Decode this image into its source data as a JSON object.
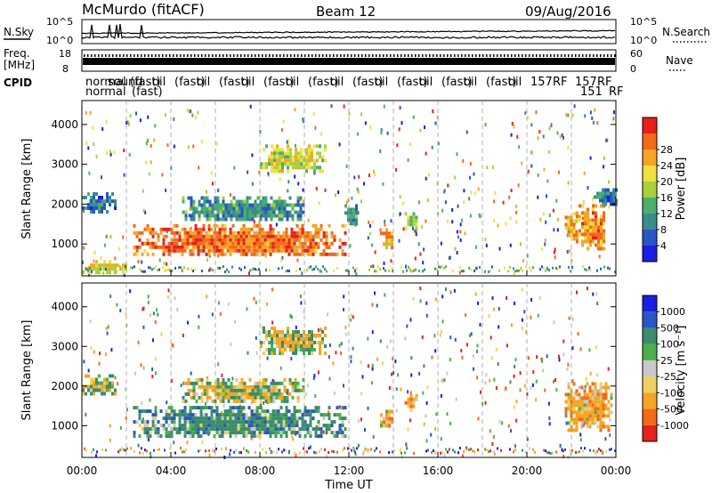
{
  "header": {
    "radar": "McMurdo (fitACF)",
    "beam": "Beam 12",
    "date": "09/Aug/2016"
  },
  "status_panels": {
    "nsky_label": "N.Sky",
    "nsearch_label": "N.Search",
    "nsky_ticks": [
      "10^5",
      "10^0"
    ],
    "nsearch_ticks": [
      "10^5",
      "10^0"
    ],
    "freq_label": "Freq.",
    "freq_unit": "[MHz]",
    "freq_ticks": [
      "18",
      "8"
    ],
    "nave_label": "Nave",
    "nave_ticks": [
      "60",
      "0"
    ],
    "cpid_label": "CPID",
    "cpid_row1": [
      "normal",
      "sound",
      "(fast)",
      "oil",
      "(fast)",
      "oil",
      "(fast)",
      "oil",
      "(fast)",
      "oil",
      "(fast)",
      "oil",
      "(fast)",
      "oil",
      "(fast)",
      "oil",
      "(fast)",
      "oil",
      "(fast)",
      "oil",
      "157",
      "RF",
      "157",
      "RF"
    ],
    "cpid_row2": [
      "normal",
      "(fast)",
      "151",
      "RF"
    ]
  },
  "time_axis": {
    "label": "Time UT",
    "ticks": [
      "00:00",
      "04:00",
      "08:00",
      "12:00",
      "16:00",
      "20:00",
      "00:00"
    ]
  },
  "power_panel": {
    "ylabel": "Slant Range [km]",
    "yticks": [
      "1000",
      "2000",
      "3000",
      "4000"
    ],
    "colorbar_label": "Power [dB]",
    "colorbar_ticks": [
      "4",
      "8",
      "12",
      "16",
      "20",
      "24",
      "28"
    ],
    "colors": [
      "#1b1fe0",
      "#2a55c8",
      "#3a8c8a",
      "#4ab06a",
      "#a8d23a",
      "#f0e040",
      "#f5a524",
      "#f26a1a",
      "#e8201a"
    ]
  },
  "velocity_panel": {
    "ylabel": "Slant Range [km]",
    "yticks": [
      "1000",
      "2000",
      "3000",
      "4000"
    ],
    "colorbar_label": "Velocity [m s⁻¹]",
    "colorbar_ticks": [
      "-1000",
      "-500",
      "-100",
      "-25",
      "25",
      "100",
      "500",
      "1000"
    ],
    "colors": [
      "#e8201a",
      "#f26a1a",
      "#f5a524",
      "#f0d060",
      "#c8c8c8",
      "#4ab04a",
      "#3a8c6a",
      "#2a55c8",
      "#1b1fe0"
    ]
  },
  "chart_data": {
    "type": "heatmap",
    "title": "McMurdo (fitACF) Beam 12 09/Aug/2016",
    "xlabel": "Time UT",
    "ylabel": "Slant Range [km]",
    "xlim_hours": [
      0,
      24
    ],
    "ylim_km": [
      200,
      4600
    ],
    "grid": "dashed vertical lines every 2 hours",
    "power_regions": [
      {
        "t0": 0.0,
        "t1": 1.5,
        "r0": 1800,
        "r1": 2300,
        "value_db": 8
      },
      {
        "t0": 0.0,
        "t1": 2.0,
        "r0": 300,
        "r1": 600,
        "value_db": 20
      },
      {
        "t0": 2.3,
        "t1": 11.8,
        "r0": 700,
        "r1": 1500,
        "value_db": 26
      },
      {
        "t0": 4.5,
        "t1": 10.0,
        "r0": 1600,
        "r1": 2200,
        "value_db": 10
      },
      {
        "t0": 8.0,
        "t1": 11.0,
        "r0": 2800,
        "r1": 3500,
        "value_db": 18
      },
      {
        "t0": 11.8,
        "t1": 12.4,
        "r0": 1500,
        "r1": 2000,
        "value_db": 10
      },
      {
        "t0": 13.4,
        "t1": 14.0,
        "r0": 900,
        "r1": 1400,
        "value_db": 22
      },
      {
        "t0": 14.5,
        "t1": 15.0,
        "r0": 1400,
        "r1": 1800,
        "value_db": 16
      },
      {
        "t0": 21.7,
        "t1": 22.2,
        "r0": 1100,
        "r1": 1800,
        "value_db": 22
      },
      {
        "t0": 22.2,
        "t1": 23.5,
        "r0": 900,
        "r1": 2000,
        "value_db": 24
      },
      {
        "t0": 23.0,
        "t1": 24.0,
        "r0": 2000,
        "r1": 2400,
        "value_db": 8
      }
    ],
    "velocity_regions": [
      {
        "t0": 0.0,
        "t1": 1.5,
        "r0": 1800,
        "r1": 2300,
        "value_ms": 25
      },
      {
        "t0": 2.3,
        "t1": 11.8,
        "r0": 700,
        "r1": 1500,
        "value_ms": 300
      },
      {
        "t0": 4.5,
        "t1": 10.0,
        "r0": 1600,
        "r1": 2200,
        "value_ms": 0
      },
      {
        "t0": 8.0,
        "t1": 11.0,
        "r0": 2800,
        "r1": 3500,
        "value_ms": -100
      },
      {
        "t0": 13.4,
        "t1": 14.0,
        "r0": 900,
        "r1": 1400,
        "value_ms": -300
      },
      {
        "t0": 14.5,
        "t1": 15.0,
        "r0": 1400,
        "r1": 1800,
        "value_ms": -300
      },
      {
        "t0": 21.7,
        "t1": 23.8,
        "r0": 900,
        "r1": 2100,
        "value_ms": -300
      }
    ]
  }
}
